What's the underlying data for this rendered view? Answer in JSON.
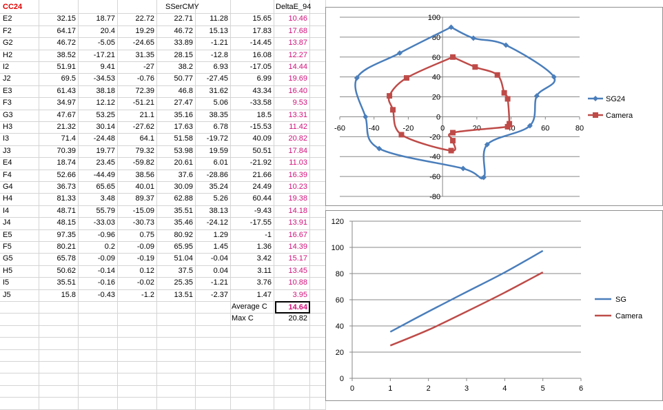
{
  "sheet": {
    "title_cell": "CC24",
    "header_sser": "SSerCMY",
    "header_delta": "DeltaE_94",
    "rows": [
      {
        "label": "E2",
        "v": [
          "32.15",
          "18.77",
          "22.72",
          "22.71",
          "11.28",
          "15.65"
        ],
        "d": "10.46"
      },
      {
        "label": "F2",
        "v": [
          "64.17",
          "20.4",
          "19.29",
          "46.72",
          "15.13",
          "17.83"
        ],
        "d": "17.68"
      },
      {
        "label": "G2",
        "v": [
          "46.72",
          "-5.05",
          "-24.65",
          "33.89",
          "-1.21",
          "-14.45"
        ],
        "d": "13.87"
      },
      {
        "label": "H2",
        "v": [
          "38.52",
          "-17.21",
          "31.35",
          "28.15",
          "-12.8",
          "16.08"
        ],
        "d": "12.27"
      },
      {
        "label": "I2",
        "v": [
          "51.91",
          "9.41",
          "-27",
          "38.2",
          "6.93",
          "-17.05"
        ],
        "d": "14.44"
      },
      {
        "label": "J2",
        "v": [
          "69.5",
          "-34.53",
          "-0.76",
          "50.77",
          "-27.45",
          "6.99"
        ],
        "d": "19.69"
      },
      {
        "label": "E3",
        "v": [
          "61.43",
          "38.18",
          "72.39",
          "46.8",
          "31.62",
          "43.34"
        ],
        "d": "16.40"
      },
      {
        "label": "F3",
        "v": [
          "34.97",
          "12.12",
          "-51.21",
          "27.47",
          "5.06",
          "-33.58"
        ],
        "d": "9.53"
      },
      {
        "label": "G3",
        "v": [
          "47.67",
          "53.25",
          "21.1",
          "35.16",
          "38.35",
          "18.5"
        ],
        "d": "13.31"
      },
      {
        "label": "H3",
        "v": [
          "21.32",
          "30.14",
          "-27.62",
          "17.63",
          "6.78",
          "-15.53"
        ],
        "d": "11.42"
      },
      {
        "label": "I3",
        "v": [
          "71.4",
          "-24.48",
          "64.1",
          "51.58",
          "-19.72",
          "40.09"
        ],
        "d": "20.82"
      },
      {
        "label": "J3",
        "v": [
          "70.39",
          "19.77",
          "79.32",
          "53.98",
          "19.59",
          "50.51"
        ],
        "d": "17.84"
      },
      {
        "label": "E4",
        "v": [
          "18.74",
          "23.45",
          "-59.82",
          "20.61",
          "6.01",
          "-21.92"
        ],
        "d": "11.03"
      },
      {
        "label": "F4",
        "v": [
          "52.66",
          "-44.49",
          "38.56",
          "37.6",
          "-28.86",
          "21.66"
        ],
        "d": "16.39"
      },
      {
        "label": "G4",
        "v": [
          "36.73",
          "65.65",
          "40.01",
          "30.09",
          "35.24",
          "24.49"
        ],
        "d": "10.23"
      },
      {
        "label": "H4",
        "v": [
          "81.33",
          "3.48",
          "89.37",
          "62.88",
          "5.26",
          "60.44"
        ],
        "d": "19.38"
      },
      {
        "label": "I4",
        "v": [
          "48.71",
          "55.79",
          "-15.09",
          "35.51",
          "38.13",
          "-9.43"
        ],
        "d": "14.18"
      },
      {
        "label": "J4",
        "v": [
          "48.15",
          "-33.03",
          "-30.73",
          "35.46",
          "-24.12",
          "-17.55"
        ],
        "d": "13.91"
      },
      {
        "label": "E5",
        "v": [
          "97.35",
          "-0.96",
          "0.75",
          "80.92",
          "1.29",
          "-1"
        ],
        "d": "16.67"
      },
      {
        "label": "F5",
        "v": [
          "80.21",
          "0.2",
          "-0.09",
          "65.95",
          "1.45",
          "1.36"
        ],
        "d": "14.39"
      },
      {
        "label": "G5",
        "v": [
          "65.78",
          "-0.09",
          "-0.19",
          "51.04",
          "-0.04",
          "3.42"
        ],
        "d": "15.17"
      },
      {
        "label": "H5",
        "v": [
          "50.62",
          "-0.14",
          "0.12",
          "37.5",
          "0.04",
          "3.11"
        ],
        "d": "13.45"
      },
      {
        "label": "I5",
        "v": [
          "35.51",
          "-0.16",
          "-0.02",
          "25.35",
          "-1.21",
          "3.76"
        ],
        "d": "10.88"
      },
      {
        "label": "J5",
        "v": [
          "15.8",
          "-0.43",
          "-1.2",
          "13.51",
          "-2.37",
          "1.47"
        ],
        "d": "3.95"
      }
    ],
    "average_label": "Average C",
    "average_value": "14.64",
    "max_label": "Max C",
    "max_value": "20.82",
    "colors": {
      "pink": "#d2107b",
      "red": "#e00000",
      "grid": "#d4d4d4"
    }
  },
  "chart_data": [
    {
      "type": "scatter",
      "xlim": [
        -60,
        80
      ],
      "ylim": [
        -80,
        100
      ],
      "xticks": [
        "-60",
        "-40",
        "-20",
        "0",
        "20",
        "40",
        "60",
        "80"
      ],
      "yticks": [
        "100",
        "80",
        "60",
        "40",
        "20",
        "0",
        "-20",
        "-40",
        "-60",
        "-80"
      ],
      "legend_position": "right",
      "series": [
        {
          "name": "SG24",
          "color": "#4a7ebb",
          "marker": "diamond",
          "points": [
            [
              5,
              90
            ],
            [
              18,
              79
            ],
            [
              37,
              72
            ],
            [
              65,
              40
            ],
            [
              55,
              21
            ],
            [
              51,
              -9
            ],
            [
              26,
              -28
            ],
            [
              24,
              -61
            ],
            [
              12,
              -52
            ],
            [
              -37,
              -32
            ],
            [
              -45,
              0
            ],
            [
              -50,
              39
            ],
            [
              -25,
              64
            ],
            [
              5,
              90
            ]
          ]
        },
        {
          "name": "Camera",
          "color": "#be4b48",
          "marker": "square",
          "points": [
            [
              6,
              60
            ],
            [
              19,
              50
            ],
            [
              32,
              42
            ],
            [
              36,
              24
            ],
            [
              38,
              18
            ],
            [
              39,
              -7
            ],
            [
              38,
              -10
            ],
            [
              6,
              -16
            ],
            [
              6,
              -24
            ],
            [
              5,
              -34
            ],
            [
              -24,
              -18
            ],
            [
              -29,
              7
            ],
            [
              -31,
              21
            ],
            [
              -21,
              39
            ],
            [
              6,
              60
            ]
          ]
        }
      ]
    },
    {
      "type": "line",
      "xlim": [
        0,
        6
      ],
      "ylim": [
        0,
        120
      ],
      "xticks": [
        "0",
        "1",
        "2",
        "3",
        "4",
        "5",
        "6"
      ],
      "yticks": [
        "120",
        "100",
        "80",
        "60",
        "40",
        "20",
        "0"
      ],
      "legend_position": "right",
      "series": [
        {
          "name": "SG",
          "color": "#4a7ebb",
          "x": [
            1,
            2,
            3,
            4,
            5
          ],
          "values": [
            35.5,
            51,
            66,
            80.9,
            97.4
          ]
        },
        {
          "name": "Camera",
          "color": "#be4b48",
          "x": [
            1,
            2,
            3,
            4,
            5
          ],
          "values": [
            25,
            37,
            51,
            65.5,
            81
          ]
        }
      ]
    }
  ]
}
